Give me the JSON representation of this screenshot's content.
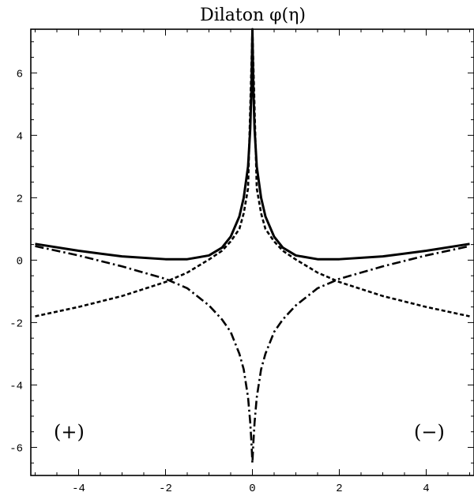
{
  "chart_data": {
    "type": "line",
    "title": "Dilaton  φ(η)",
    "xlabel": "",
    "ylabel": "",
    "xlim": [
      -5.1,
      5.1
    ],
    "ylim": [
      -6.9,
      7.4
    ],
    "grid": false,
    "x_ticks": [
      -4,
      -2,
      0,
      2,
      4
    ],
    "y_ticks": [
      -6,
      -4,
      -2,
      0,
      2,
      4,
      6
    ],
    "x_tick_labels": [
      "-4",
      "-2",
      "0",
      "2",
      "4"
    ],
    "y_tick_labels": [
      "-6",
      "-4",
      "-2",
      "0",
      "2",
      "4",
      "6"
    ],
    "annotations": [
      "(+)",
      "(−)"
    ],
    "series": [
      {
        "style": "solid",
        "x": [
          -5,
          -4,
          -3,
          -2,
          -1.5,
          -1,
          -0.7,
          -0.5,
          -0.3,
          -0.2,
          -0.1,
          -0.05,
          -0.02,
          0,
          0.02,
          0.05,
          0.1,
          0.2,
          0.3,
          0.5,
          0.7,
          1,
          1.5,
          2,
          3,
          4,
          5
        ],
        "y": [
          0.52,
          0.3,
          0.12,
          0.03,
          0.03,
          0.15,
          0.4,
          0.75,
          1.4,
          2.0,
          3.0,
          4.2,
          5.6,
          7.4,
          5.6,
          4.2,
          3.0,
          2.0,
          1.4,
          0.75,
          0.4,
          0.15,
          0.03,
          0.03,
          0.12,
          0.3,
          0.52
        ]
      },
      {
        "style": "dashed",
        "x": [
          -5,
          -4,
          -3,
          -2,
          -1.5,
          -1,
          -0.7,
          -0.5,
          -0.3,
          -0.2,
          -0.1,
          0,
          0.1,
          0.2,
          0.3,
          0.5,
          0.7,
          1,
          1.5,
          2,
          3,
          4,
          5
        ],
        "y": [
          -1.8,
          -1.5,
          -1.15,
          -0.7,
          -0.4,
          0.02,
          0.3,
          0.6,
          1.0,
          1.5,
          2.3,
          7.4,
          2.3,
          1.5,
          1.0,
          0.6,
          0.3,
          0.02,
          -0.4,
          -0.7,
          -1.15,
          -1.5,
          -1.8
        ]
      },
      {
        "style": "dash-dot",
        "x": [
          -5,
          -4,
          -3,
          -2,
          -1.5,
          -1,
          -0.7,
          -0.5,
          -0.3,
          -0.2,
          -0.1,
          -0.05,
          -0.02,
          0,
          0.02,
          0.05,
          0.1,
          0.2,
          0.3,
          0.5,
          0.7,
          1,
          1.5,
          2,
          3,
          4,
          5
        ],
        "y": [
          0.45,
          0.15,
          -0.2,
          -0.6,
          -0.9,
          -1.45,
          -1.9,
          -2.3,
          -3.0,
          -3.5,
          -4.4,
          -5.2,
          -5.9,
          -6.5,
          -5.9,
          -5.2,
          -4.4,
          -3.5,
          -3.0,
          -2.3,
          -1.9,
          -1.45,
          -0.9,
          -0.6,
          -0.2,
          0.15,
          0.45
        ]
      }
    ]
  }
}
